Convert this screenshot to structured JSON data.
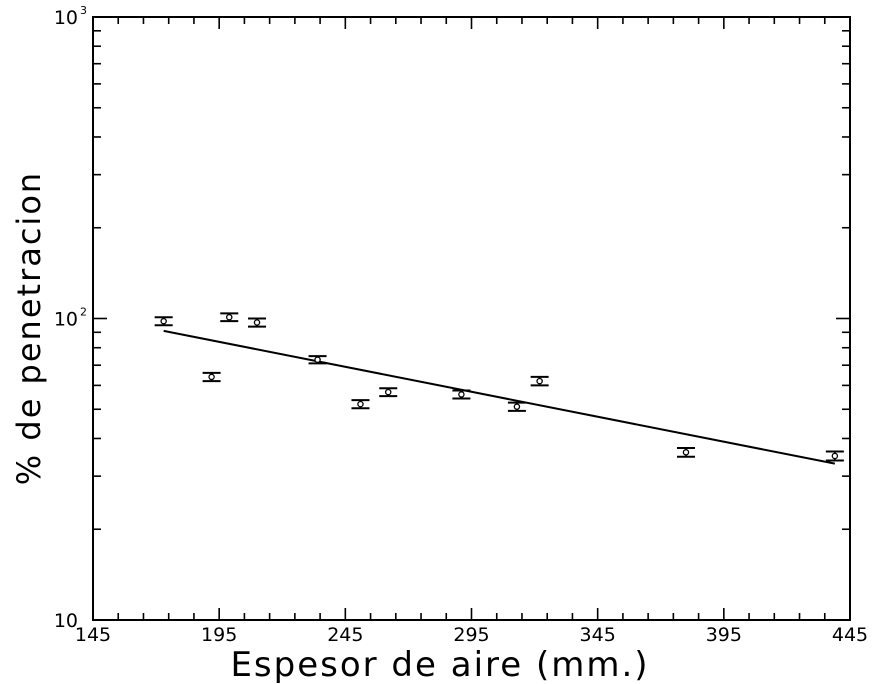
{
  "chart_data": {
    "type": "scatter",
    "title": "",
    "xlabel": "Espesor de aire (mm.)",
    "ylabel": "% de penetracion",
    "xlim": [
      145,
      445
    ],
    "ylim": [
      10,
      1000
    ],
    "yscale": "log",
    "x_ticks": [
      145,
      195,
      245,
      295,
      345,
      395,
      445
    ],
    "x_tick_labels": [
      "145",
      "195",
      "245",
      "295",
      "345",
      "395",
      "445"
    ],
    "y_ticks": [
      10,
      100,
      1000
    ],
    "y_tick_labels": [
      {
        "base": "10",
        "exp": ""
      },
      {
        "base": "10",
        "exp": "2"
      },
      {
        "base": "10",
        "exp": "3"
      }
    ],
    "grid": false,
    "legend": "none",
    "points": [
      {
        "x": 173,
        "y": 98,
        "err": 3
      },
      {
        "x": 192,
        "y": 64,
        "err": 2
      },
      {
        "x": 199,
        "y": 101,
        "err": 3
      },
      {
        "x": 210,
        "y": 97,
        "err": 3
      },
      {
        "x": 234,
        "y": 73,
        "err": 2
      },
      {
        "x": 251,
        "y": 52,
        "err": 1.6
      },
      {
        "x": 262,
        "y": 57,
        "err": 1.7
      },
      {
        "x": 291,
        "y": 56,
        "err": 1.7
      },
      {
        "x": 313,
        "y": 51,
        "err": 1.6
      },
      {
        "x": 322,
        "y": 62,
        "err": 2
      },
      {
        "x": 380,
        "y": 36,
        "err": 1.2
      },
      {
        "x": 439,
        "y": 35,
        "err": 1.2
      }
    ],
    "fit_line": {
      "x": [
        173,
        439
      ],
      "y": [
        91,
        33
      ]
    }
  }
}
